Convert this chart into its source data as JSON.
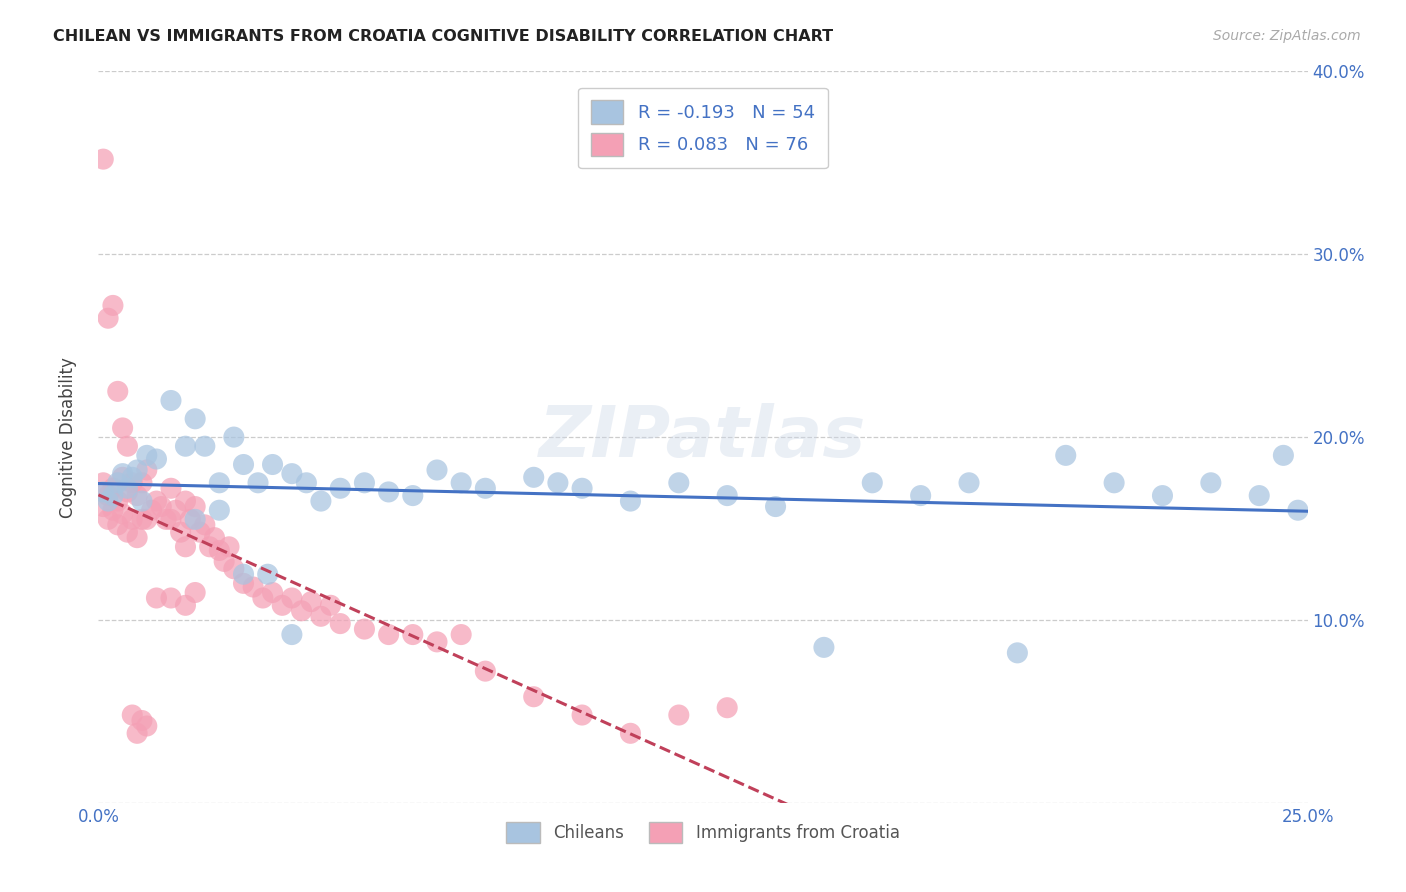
{
  "title": "CHILEAN VS IMMIGRANTS FROM CROATIA COGNITIVE DISABILITY CORRELATION CHART",
  "source": "Source: ZipAtlas.com",
  "ylabel": "Cognitive Disability",
  "xlim": [
    0.0,
    0.25
  ],
  "ylim": [
    0.0,
    0.4
  ],
  "blue_R": -0.193,
  "blue_N": 54,
  "pink_R": 0.083,
  "pink_N": 76,
  "blue_color": "#a8c4e0",
  "pink_color": "#f4a0b5",
  "blue_line_color": "#4472c4",
  "pink_line_color": "#c0405a",
  "accent_color": "#4472c4",
  "watermark": "ZIPatlas",
  "legend_label_blue": "Chileans",
  "legend_label_pink": "Immigrants from Croatia",
  "grid_color": "#cccccc",
  "title_color": "#222222",
  "source_color": "#aaaaaa",
  "blue_x": [
    0.001,
    0.002,
    0.003,
    0.004,
    0.005,
    0.006,
    0.007,
    0.008,
    0.009,
    0.01,
    0.012,
    0.015,
    0.018,
    0.02,
    0.022,
    0.025,
    0.028,
    0.03,
    0.033,
    0.036,
    0.04,
    0.043,
    0.046,
    0.05,
    0.055,
    0.06,
    0.065,
    0.07,
    0.075,
    0.08,
    0.09,
    0.095,
    0.1,
    0.11,
    0.12,
    0.13,
    0.14,
    0.15,
    0.16,
    0.17,
    0.18,
    0.19,
    0.2,
    0.21,
    0.22,
    0.23,
    0.24,
    0.245,
    0.248,
    0.02,
    0.025,
    0.03,
    0.035,
    0.04
  ],
  "blue_y": [
    0.17,
    0.165,
    0.168,
    0.175,
    0.18,
    0.172,
    0.178,
    0.182,
    0.165,
    0.19,
    0.188,
    0.22,
    0.195,
    0.21,
    0.195,
    0.175,
    0.2,
    0.185,
    0.175,
    0.185,
    0.18,
    0.175,
    0.165,
    0.172,
    0.175,
    0.17,
    0.168,
    0.182,
    0.175,
    0.172,
    0.178,
    0.175,
    0.172,
    0.165,
    0.175,
    0.168,
    0.162,
    0.085,
    0.175,
    0.168,
    0.175,
    0.082,
    0.19,
    0.175,
    0.168,
    0.175,
    0.168,
    0.19,
    0.16,
    0.155,
    0.16,
    0.125,
    0.125,
    0.092
  ],
  "pink_x": [
    0.001,
    0.001,
    0.002,
    0.002,
    0.003,
    0.003,
    0.004,
    0.004,
    0.005,
    0.005,
    0.006,
    0.006,
    0.007,
    0.007,
    0.008,
    0.008,
    0.009,
    0.009,
    0.01,
    0.01,
    0.011,
    0.012,
    0.013,
    0.014,
    0.015,
    0.015,
    0.016,
    0.017,
    0.018,
    0.018,
    0.019,
    0.02,
    0.021,
    0.022,
    0.023,
    0.024,
    0.025,
    0.026,
    0.027,
    0.028,
    0.03,
    0.032,
    0.034,
    0.036,
    0.038,
    0.04,
    0.042,
    0.044,
    0.046,
    0.048,
    0.05,
    0.055,
    0.06,
    0.065,
    0.07,
    0.075,
    0.08,
    0.09,
    0.1,
    0.11,
    0.12,
    0.13,
    0.001,
    0.002,
    0.003,
    0.004,
    0.005,
    0.006,
    0.007,
    0.008,
    0.009,
    0.01,
    0.012,
    0.015,
    0.018,
    0.02
  ],
  "pink_y": [
    0.175,
    0.162,
    0.168,
    0.155,
    0.172,
    0.16,
    0.165,
    0.152,
    0.178,
    0.158,
    0.17,
    0.148,
    0.175,
    0.155,
    0.168,
    0.145,
    0.175,
    0.155,
    0.182,
    0.155,
    0.16,
    0.165,
    0.162,
    0.155,
    0.172,
    0.155,
    0.16,
    0.148,
    0.165,
    0.14,
    0.155,
    0.162,
    0.148,
    0.152,
    0.14,
    0.145,
    0.138,
    0.132,
    0.14,
    0.128,
    0.12,
    0.118,
    0.112,
    0.115,
    0.108,
    0.112,
    0.105,
    0.11,
    0.102,
    0.108,
    0.098,
    0.095,
    0.092,
    0.092,
    0.088,
    0.092,
    0.072,
    0.058,
    0.048,
    0.038,
    0.048,
    0.052,
    0.352,
    0.265,
    0.272,
    0.225,
    0.205,
    0.195,
    0.048,
    0.038,
    0.045,
    0.042,
    0.112,
    0.112,
    0.108,
    0.115
  ]
}
